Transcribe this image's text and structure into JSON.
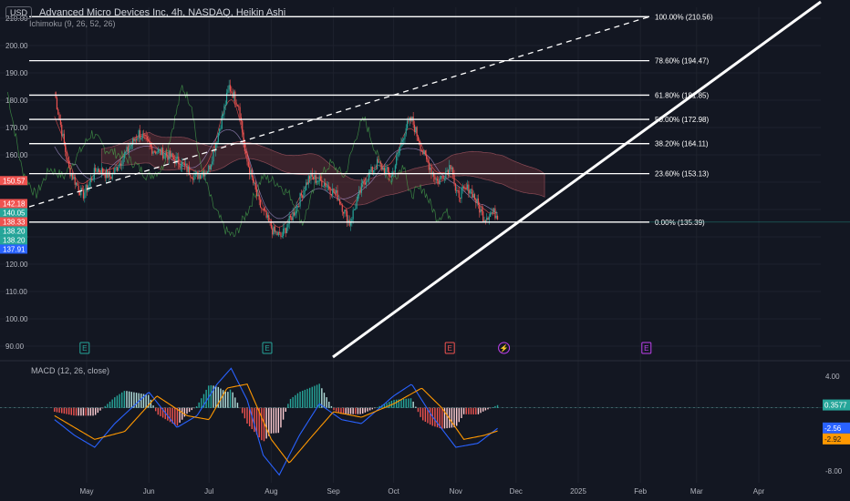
{
  "header": {
    "currency": "USD",
    "title": "Advanced Micro Devices Inc, 4h, NASDAQ, Heikin Ashi",
    "ichimoku": "Ichimoku (9, 26, 52, 26)",
    "macd": "MACD (12, 26, close)"
  },
  "colors": {
    "bg": "#131722",
    "up": "#26a69a",
    "down": "#ef5350",
    "fib": "#ffffff",
    "macd_line": "#2962ff",
    "signal_line": "#ff9800",
    "cloud": "#5d2e35",
    "conv": "#4caf50",
    "base": "#b39ddb"
  },
  "chart_data": [
    {
      "type": "candlestick",
      "title": "Advanced Micro Devices Inc, 4h, NASDAQ, Heikin Ashi",
      "x_ticks": [
        "May",
        "Jun",
        "Jul",
        "Aug",
        "Sep",
        "Oct",
        "Nov",
        "Dec",
        "2025",
        "Feb",
        "Mar",
        "Apr"
      ],
      "y_ticks": [
        90,
        100,
        110,
        120,
        130,
        140,
        150,
        160,
        170,
        180,
        190,
        200,
        210
      ],
      "ylim": [
        86,
        214
      ],
      "close_path": [
        {
          "x": "Apr 15",
          "y": 183
        },
        {
          "x": "Apr 22",
          "y": 155
        },
        {
          "x": "Apr 29",
          "y": 145
        },
        {
          "x": "May 6",
          "y": 155
        },
        {
          "x": "May 13",
          "y": 152
        },
        {
          "x": "May 20",
          "y": 160
        },
        {
          "x": "May 27",
          "y": 168
        },
        {
          "x": "Jun 3",
          "y": 162
        },
        {
          "x": "Jun 10",
          "y": 160
        },
        {
          "x": "Jun 17",
          "y": 157
        },
        {
          "x": "Jun 24",
          "y": 152
        },
        {
          "x": "Jul 1",
          "y": 155
        },
        {
          "x": "Jul 8",
          "y": 175
        },
        {
          "x": "Jul 11",
          "y": 185
        },
        {
          "x": "Jul 16",
          "y": 178
        },
        {
          "x": "Jul 19",
          "y": 160
        },
        {
          "x": "Jul 26",
          "y": 142
        },
        {
          "x": "Aug 2",
          "y": 132
        },
        {
          "x": "Aug 6",
          "y": 130
        },
        {
          "x": "Aug 13",
          "y": 140
        },
        {
          "x": "Aug 20",
          "y": 152
        },
        {
          "x": "Aug 27",
          "y": 150
        },
        {
          "x": "Sep 3",
          "y": 145
        },
        {
          "x": "Sep 9",
          "y": 135
        },
        {
          "x": "Sep 16",
          "y": 150
        },
        {
          "x": "Sep 23",
          "y": 157
        },
        {
          "x": "Sep 30",
          "y": 152
        },
        {
          "x": "Oct 7",
          "y": 170
        },
        {
          "x": "Oct 10",
          "y": 173
        },
        {
          "x": "Oct 16",
          "y": 160
        },
        {
          "x": "Oct 23",
          "y": 150
        },
        {
          "x": "Oct 30",
          "y": 157
        },
        {
          "x": "Nov 1",
          "y": 145
        },
        {
          "x": "Nov 8",
          "y": 148
        },
        {
          "x": "Nov 13",
          "y": 140
        },
        {
          "x": "Nov 15",
          "y": 137
        },
        {
          "x": "Nov 19",
          "y": 139
        },
        {
          "x": "Nov 22",
          "y": 138
        }
      ],
      "fib_levels": [
        {
          "label": "100.00% (210.56)",
          "value": 210.56
        },
        {
          "label": "78.60% (194.47)",
          "value": 194.47
        },
        {
          "label": "61.80% (181.85)",
          "value": 181.85
        },
        {
          "label": "50.00% (172.98)",
          "value": 172.98
        },
        {
          "label": "38.20% (164.11)",
          "value": 164.11
        },
        {
          "label": "23.60% (153.13)",
          "value": 153.13
        },
        {
          "label": "0.00% (135.39)",
          "value": 135.39
        }
      ],
      "price_tags": [
        {
          "text": "150.57",
          "value": 150.57,
          "color": "#ef5350"
        },
        {
          "text": "142.18",
          "value": 142.18,
          "color": "#ef5350"
        },
        {
          "text": "140.05",
          "value": 140.05,
          "color": "#26a69a"
        },
        {
          "text": "138.33",
          "value": 138.33,
          "color": "#ef5350"
        },
        {
          "text": "138.20",
          "value": 138.2,
          "color": "#26a69a"
        },
        {
          "text": "138.20",
          "value": 138.2,
          "color": "#26a69a"
        },
        {
          "text": "137.91",
          "value": 137.91,
          "color": "#2962ff"
        }
      ],
      "events": [
        {
          "x": "Apr 30",
          "label": "E",
          "color": "#26a69a"
        },
        {
          "x": "Jul 30",
          "label": "E",
          "color": "#26a69a"
        },
        {
          "x": "Oct 29",
          "label": "E",
          "color": "#ef5350"
        },
        {
          "x": "Nov 25",
          "label": "⚡",
          "color": "#c040f0"
        },
        {
          "x": "Feb 4",
          "label": "E",
          "color": "#c040f0"
        }
      ]
    },
    {
      "type": "line",
      "title": "MACD (12, 26, close)",
      "y_ticks": [
        4.0,
        -8.0
      ],
      "ylim": [
        -9.5,
        5.5
      ],
      "tags": [
        {
          "text": "0.3577",
          "value": 0.3577,
          "color": "#26a69a"
        },
        {
          "text": "-2.56",
          "value": -2.56,
          "color": "#2962ff"
        },
        {
          "text": "-2.92",
          "value": -2.92,
          "color": "#ff9800"
        }
      ],
      "series": [
        {
          "values": [
            {
              "x": "Apr 15",
              "y": -1.5
            },
            {
              "x": "Apr 25",
              "y": -3.5
            },
            {
              "x": "May 5",
              "y": -5.0
            },
            {
              "x": "May 15",
              "y": -2.0
            },
            {
              "x": "Jun 1",
              "y": 2.0
            },
            {
              "x": "Jun 15",
              "y": -2.5
            },
            {
              "x": "Jun 25",
              "y": -1.0
            },
            {
              "x": "Jul 5",
              "y": 3.0
            },
            {
              "x": "Jul 12",
              "y": 5.0
            },
            {
              "x": "Jul 20",
              "y": 1.0
            },
            {
              "x": "Jul 28",
              "y": -6.0
            },
            {
              "x": "Aug 5",
              "y": -8.5
            },
            {
              "x": "Aug 15",
              "y": -3.5
            },
            {
              "x": "Aug 25",
              "y": 0.5
            },
            {
              "x": "Sep 5",
              "y": -1.5
            },
            {
              "x": "Sep 15",
              "y": -2.0
            },
            {
              "x": "Oct 1",
              "y": 1.5
            },
            {
              "x": "Oct 10",
              "y": 3.0
            },
            {
              "x": "Oct 20",
              "y": -1.0
            },
            {
              "x": "Nov 1",
              "y": -5.0
            },
            {
              "x": "Nov 12",
              "y": -4.5
            },
            {
              "x": "Nov 22",
              "y": -2.56
            }
          ]
        },
        {
          "values": [
            {
              "x": "Apr 15",
              "y": -1.0
            },
            {
              "x": "Apr 25",
              "y": -2.5
            },
            {
              "x": "May 5",
              "y": -4.0
            },
            {
              "x": "May 20",
              "y": -3.0
            },
            {
              "x": "Jun 5",
              "y": 1.5
            },
            {
              "x": "Jun 20",
              "y": -1.0
            },
            {
              "x": "Jul 1",
              "y": -1.5
            },
            {
              "x": "Jul 10",
              "y": 2.5
            },
            {
              "x": "Jul 20",
              "y": 3.0
            },
            {
              "x": "Aug 1",
              "y": -4.0
            },
            {
              "x": "Aug 10",
              "y": -7.0
            },
            {
              "x": "Aug 20",
              "y": -4.0
            },
            {
              "x": "Sep 1",
              "y": -0.5
            },
            {
              "x": "Sep 15",
              "y": -1.2
            },
            {
              "x": "Oct 1",
              "y": 0.5
            },
            {
              "x": "Oct 15",
              "y": 2.5
            },
            {
              "x": "Oct 25",
              "y": 0.0
            },
            {
              "x": "Nov 5",
              "y": -4.0
            },
            {
              "x": "Nov 15",
              "y": -3.5
            },
            {
              "x": "Nov 22",
              "y": -2.92
            }
          ]
        }
      ]
    }
  ]
}
